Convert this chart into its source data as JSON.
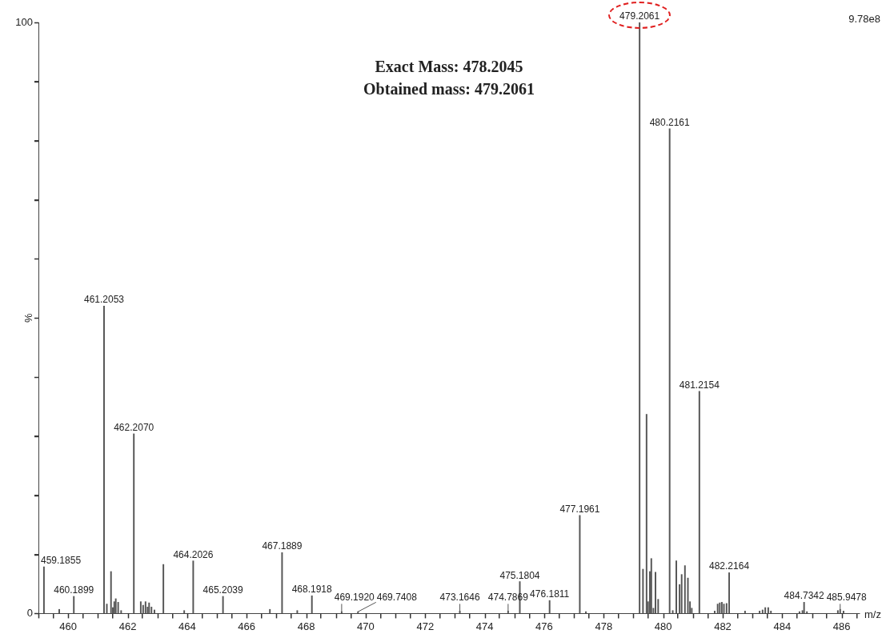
{
  "chart_data": {
    "type": "bar",
    "xlabel": "m/z",
    "ylabel": "%",
    "annotations": [
      "Exact Mass: 478.2045",
      "Obtained mass: 479.2061",
      "9.78e8",
      {
        "text": "459.1855",
        "x": 459.1855,
        "y": 7.9
      },
      {
        "text": "460.1899",
        "x": 460.1899,
        "y": 2.9
      },
      {
        "text": "461.2053",
        "x": 461.2053,
        "y": 52.0
      },
      {
        "text": "462.2070",
        "x": 462.207,
        "y": 30.4
      },
      {
        "text": "464.2026",
        "x": 464.2026,
        "y": 8.9
      },
      {
        "text": "465.2039",
        "x": 465.2039,
        "y": 2.9
      },
      {
        "text": "467.1889",
        "x": 467.1889,
        "y": 10.3
      },
      {
        "text": "468.1918",
        "x": 468.1918,
        "y": 3.0
      },
      {
        "text": "469.1920",
        "x": 469.192,
        "y": 0.3
      },
      {
        "text": "469.7408",
        "x": 469.7408,
        "y": 0.3
      },
      {
        "text": "473.1646",
        "x": 473.1646,
        "y": 0.4
      },
      {
        "text": "474.7869",
        "x": 474.7869,
        "y": 0.4
      },
      {
        "text": "475.1804",
        "x": 475.1804,
        "y": 5.4
      },
      {
        "text": "476.1811",
        "x": 476.1811,
        "y": 2.2
      },
      {
        "text": "477.1961",
        "x": 477.1961,
        "y": 16.6
      },
      {
        "text": "479.2061",
        "x": 479.2061,
        "y": 100
      },
      {
        "text": "480.2161",
        "x": 480.2161,
        "y": 82
      },
      {
        "text": "481.2154",
        "x": 481.2154,
        "y": 37.6
      },
      {
        "text": "482.2164",
        "x": 482.2164,
        "y": 6.9
      },
      {
        "text": "484.7342",
        "x": 484.7342,
        "y": 1.9
      },
      {
        "text": "485.9478",
        "x": 485.9478,
        "y": 0.7
      }
    ],
    "xlim": [
      459,
      486.6
    ],
    "xticks": [
      {
        "value": 459,
        "label": null
      },
      460,
      {
        "value": 461,
        "label": null
      },
      462,
      {
        "value": 463,
        "label": null
      },
      464,
      {
        "value": 465,
        "label": null
      },
      466,
      {
        "value": 467,
        "label": null
      },
      468,
      {
        "value": 469,
        "label": null
      },
      470,
      {
        "value": 471,
        "label": null
      },
      472,
      {
        "value": 473,
        "label": null
      },
      474,
      {
        "value": 475,
        "label": null
      },
      476,
      {
        "value": 477,
        "label": null
      },
      478,
      {
        "value": 479,
        "label": null
      },
      480,
      {
        "value": 481,
        "label": null
      },
      482,
      {
        "value": 483,
        "label": null
      },
      484,
      {
        "value": 485,
        "label": null
      },
      486
    ],
    "ylim": [
      0,
      100
    ],
    "yticks": [
      0,
      {
        "value": 10,
        "label": null
      },
      {
        "value": 20,
        "label": null
      },
      {
        "value": 30,
        "label": null
      },
      {
        "value": 40,
        "label": null
      },
      {
        "value": 50,
        "label": null
      },
      {
        "value": 60,
        "label": null
      },
      {
        "value": 70,
        "label": null
      },
      {
        "value": 80,
        "label": null
      },
      {
        "value": 90,
        "label": null
      },
      100
    ],
    "grid": false,
    "legend": false,
    "series": [
      {
        "color": "#555555",
        "x": [
          459.1855,
          459.7,
          460.1899,
          461.2053,
          461.3,
          461.44,
          461.5,
          461.55,
          461.6,
          461.68,
          461.78,
          462.207,
          462.44,
          462.52,
          462.6,
          462.67,
          462.72,
          462.8,
          462.9,
          463.2,
          463.9,
          464.2026,
          465.2039,
          466.78,
          467.1889,
          467.7,
          468.1918,
          469.192,
          469.7408,
          473.1646,
          474.7869,
          475.1804,
          476.1811,
          477.1961,
          477.4,
          479.2061,
          479.32,
          479.44,
          479.49,
          479.55,
          479.6,
          479.67,
          479.74,
          479.83,
          480.2161,
          480.32,
          480.44,
          480.55,
          480.62,
          480.73,
          480.83,
          480.9,
          480.96,
          481.2154,
          481.73,
          481.83,
          481.9,
          481.97,
          482.04,
          482.13,
          482.2164,
          482.75,
          483.24,
          483.34,
          483.43,
          483.53,
          483.62,
          484.58,
          484.68,
          484.7342,
          484.83,
          485.87,
          485.9478,
          486.06
        ],
        "values": [
          7.9,
          0.7,
          2.9,
          52.0,
          1.6,
          7.1,
          1.0,
          2.0,
          2.5,
          1.9,
          0.5,
          30.4,
          2.0,
          1.4,
          2.0,
          1.1,
          1.8,
          1.1,
          0.6,
          8.3,
          0.5,
          8.9,
          2.9,
          0.7,
          10.3,
          0.5,
          3.0,
          0.3,
          0.3,
          0.4,
          0.4,
          5.4,
          2.2,
          16.6,
          0.3,
          100,
          7.5,
          33.7,
          2.0,
          7.1,
          9.3,
          0.9,
          7.0,
          2.4,
          82,
          0.5,
          8.9,
          4.9,
          6.6,
          8.1,
          6.0,
          2.0,
          0.9,
          37.6,
          0.4,
          1.6,
          1.8,
          1.9,
          1.6,
          1.7,
          6.9,
          0.4,
          0.4,
          0.6,
          1.0,
          1.0,
          0.4,
          0.3,
          0.5,
          1.9,
          0.3,
          0.5,
          0.7,
          0.4
        ]
      }
    ]
  }
}
